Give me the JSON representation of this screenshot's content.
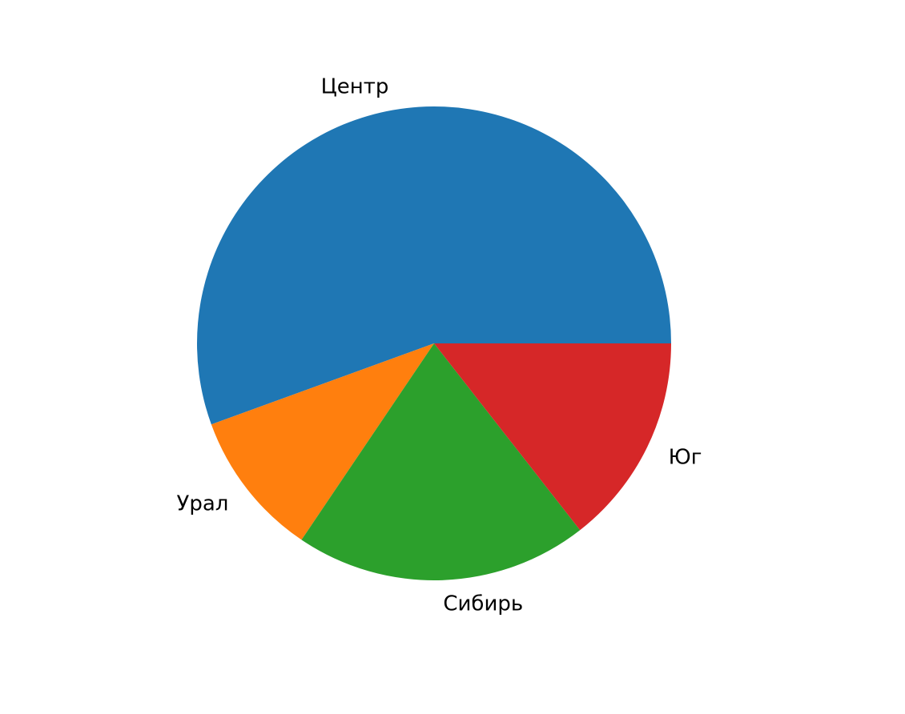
{
  "chart_data": {
    "type": "pie",
    "categories": [
      "Центр",
      "Урал",
      "Сибирь",
      "Юг"
    ],
    "values": [
      50,
      9,
      18,
      13
    ],
    "colors": [
      "#1f77b4",
      "#ff7f0e",
      "#2ca02c",
      "#d62728"
    ],
    "start_angle_deg": 0,
    "direction": "counterclockwise",
    "title": "",
    "legend": "none"
  }
}
